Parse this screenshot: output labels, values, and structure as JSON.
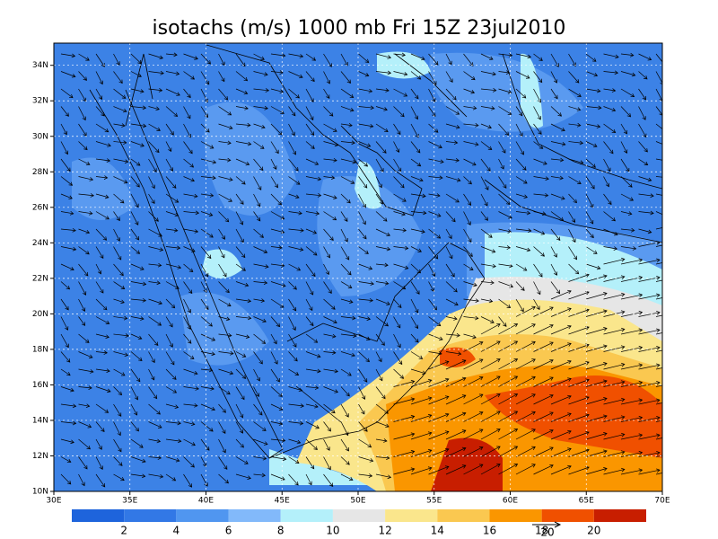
{
  "title": "isotachs (m/s) 1000 mb Fri 15Z 23jul2010",
  "map": {
    "type": "contour-map",
    "xlim": [
      30,
      70
    ],
    "ylim": [
      10,
      35.25
    ],
    "xticks": [
      {
        "value": 30,
        "label": "30E"
      },
      {
        "value": 35,
        "label": "35E"
      },
      {
        "value": 40,
        "label": "40E"
      },
      {
        "value": 45,
        "label": "45E"
      },
      {
        "value": 50,
        "label": "50E"
      },
      {
        "value": 55,
        "label": "55E"
      },
      {
        "value": 60,
        "label": "60E"
      },
      {
        "value": 65,
        "label": "65E"
      },
      {
        "value": 70,
        "label": "70E"
      }
    ],
    "yticks": [
      {
        "value": 10,
        "label": "10N"
      },
      {
        "value": 12,
        "label": "12N"
      },
      {
        "value": 14,
        "label": "14N"
      },
      {
        "value": 16,
        "label": "16N"
      },
      {
        "value": 18,
        "label": "18N"
      },
      {
        "value": 20,
        "label": "20N"
      },
      {
        "value": 22,
        "label": "22N"
      },
      {
        "value": 24,
        "label": "24N"
      },
      {
        "value": 26,
        "label": "26N"
      },
      {
        "value": 28,
        "label": "28N"
      },
      {
        "value": 30,
        "label": "30N"
      },
      {
        "value": 32,
        "label": "32N"
      },
      {
        "value": 34,
        "label": "34N"
      }
    ],
    "grid": true
  },
  "colorbar": {
    "levels": [
      2,
      4,
      6,
      8,
      10,
      12,
      14,
      16,
      18,
      20
    ],
    "colors": [
      "#1e64dc",
      "#3278e6",
      "#5096f0",
      "#82b9fa",
      "#b4f0fa",
      "#e6e6e6",
      "#fae68c",
      "#fac850",
      "#fa9600",
      "#f05000",
      "#c81e00",
      "#a00000"
    ]
  },
  "vector_reference": 20
}
